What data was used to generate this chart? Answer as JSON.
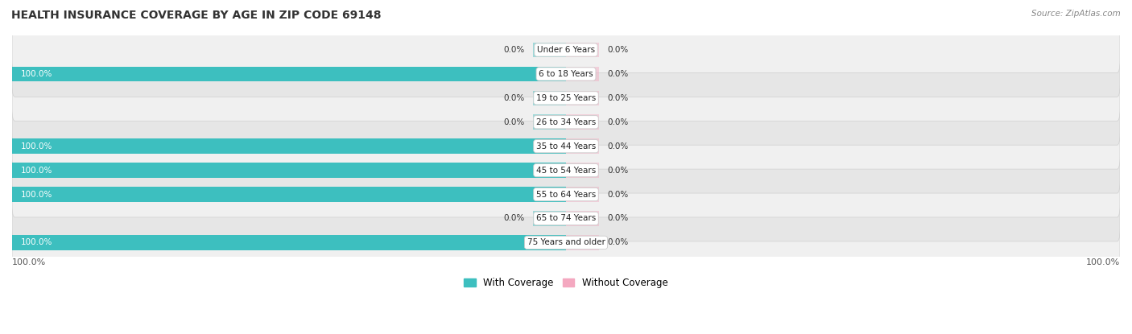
{
  "title": "HEALTH INSURANCE COVERAGE BY AGE IN ZIP CODE 69148",
  "source": "Source: ZipAtlas.com",
  "categories": [
    "Under 6 Years",
    "6 to 18 Years",
    "19 to 25 Years",
    "26 to 34 Years",
    "35 to 44 Years",
    "45 to 54 Years",
    "55 to 64 Years",
    "65 to 74 Years",
    "75 Years and older"
  ],
  "with_coverage": [
    0.0,
    100.0,
    0.0,
    0.0,
    100.0,
    100.0,
    100.0,
    0.0,
    100.0
  ],
  "without_coverage": [
    0.0,
    0.0,
    0.0,
    0.0,
    0.0,
    0.0,
    0.0,
    0.0,
    0.0
  ],
  "color_with": "#3DBFBF",
  "color_without": "#F4A8C0",
  "color_row_light": "#f0f0f0",
  "color_row_dark": "#e6e6e6",
  "color_bg": "#ffffff",
  "legend_with": "With Coverage",
  "legend_without": "Without Coverage",
  "title_fontsize": 10,
  "label_fontsize": 7.5,
  "cat_fontsize": 7.5,
  "xlim_left": -100,
  "xlim_right": 100,
  "stub_size": 6,
  "bar_height": 0.62
}
